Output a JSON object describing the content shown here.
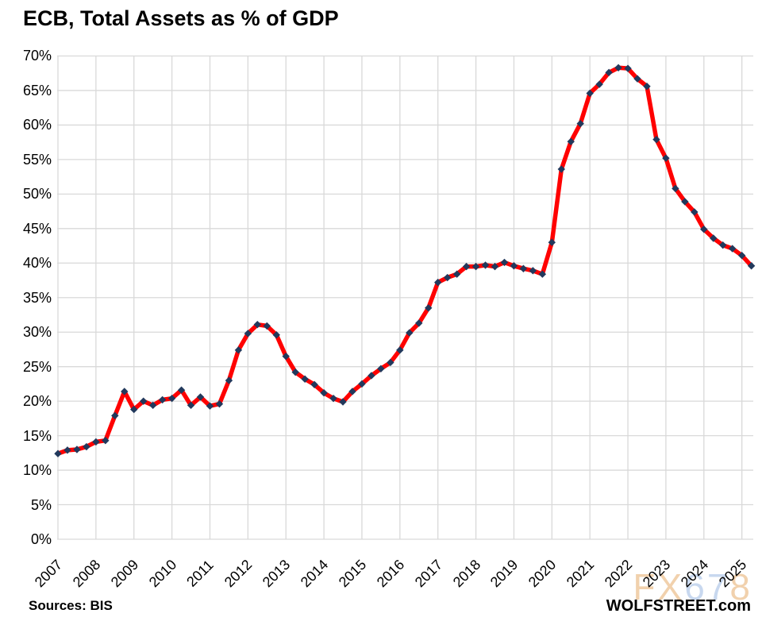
{
  "title": "ECB, Total Assets as % of GDP",
  "source_note": "Sources: BIS",
  "branding": "WOLFSTREET.com",
  "watermark": {
    "text": "FX678",
    "letters": [
      {
        "char": "F",
        "tone": "warm"
      },
      {
        "char": "X",
        "tone": "warm"
      },
      {
        "char": "6",
        "tone": "cool"
      },
      {
        "char": "7",
        "tone": "cool"
      },
      {
        "char": "8",
        "tone": "warm"
      }
    ]
  },
  "colors": {
    "line": "#ff0000",
    "marker": "#22395c",
    "grid": "#d9d9d9",
    "text": "#000000",
    "watermark_warm": "#f1d1ad",
    "watermark_cool": "#c8d8ef",
    "background": "#ffffff"
  },
  "chart_data": {
    "type": "line",
    "title": "ECB, Total Assets as % of GDP",
    "frequency": "quarterly",
    "start_period": "2007-Q1",
    "end_period": "2025-Q2",
    "ylim": [
      0,
      70
    ],
    "ytick_step": 5,
    "grid": true,
    "legend": false,
    "marker_shape": "diamond",
    "ytick_values": [
      0,
      5,
      10,
      15,
      20,
      25,
      30,
      35,
      40,
      45,
      50,
      55,
      60,
      65,
      70
    ],
    "ytick_labels": [
      "0%",
      "5%",
      "10%",
      "15%",
      "20%",
      "25%",
      "30%",
      "35%",
      "40%",
      "45%",
      "50%",
      "55%",
      "60%",
      "65%",
      "70%"
    ],
    "xtick_labels": [
      "2007",
      "2008",
      "2009",
      "2010",
      "2011",
      "2012",
      "2013",
      "2014",
      "2015",
      "2016",
      "2017",
      "2018",
      "2019",
      "2020",
      "2021",
      "2022",
      "2023",
      "2024",
      "2025"
    ],
    "series": [
      {
        "name": "ECB total assets as % of GDP",
        "values": [
          12.4,
          12.9,
          13.0,
          13.4,
          14.1,
          14.3,
          17.9,
          21.4,
          18.8,
          20.0,
          19.4,
          20.2,
          20.4,
          21.6,
          19.4,
          20.6,
          19.3,
          19.6,
          23.0,
          27.4,
          29.8,
          31.1,
          30.9,
          29.6,
          26.5,
          24.2,
          23.2,
          22.4,
          21.2,
          20.4,
          19.9,
          21.4,
          22.5,
          23.7,
          24.7,
          25.6,
          27.4,
          29.9,
          31.3,
          33.5,
          37.2,
          37.9,
          38.4,
          39.5,
          39.5,
          39.7,
          39.5,
          40.1,
          39.6,
          39.2,
          38.9,
          38.4,
          43.0,
          53.6,
          57.6,
          60.2,
          64.6,
          65.9,
          67.6,
          68.3,
          68.2,
          66.7,
          65.6,
          57.9,
          55.2,
          50.8,
          48.9,
          47.4,
          44.9,
          43.6,
          42.6,
          42.1,
          41.1,
          39.6
        ]
      }
    ]
  }
}
